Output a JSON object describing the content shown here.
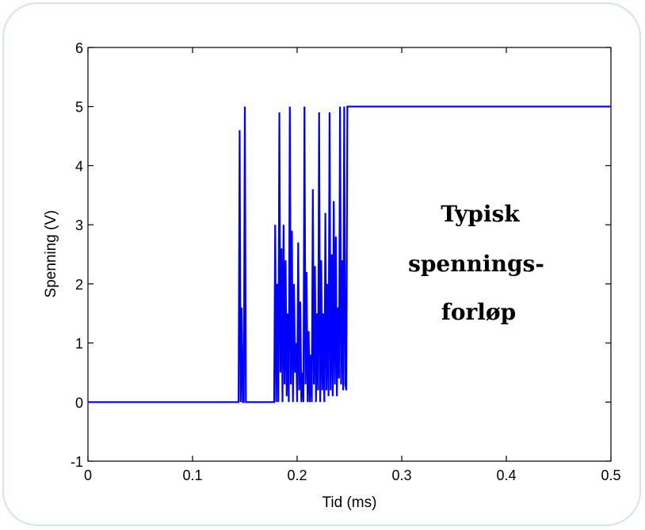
{
  "chart_data": {
    "type": "line",
    "xlabel": "Tid (ms)",
    "ylabel": "Spenning (V)",
    "xlim": [
      0,
      0.5
    ],
    "ylim": [
      -1,
      6
    ],
    "xticks": [
      0,
      0.1,
      0.2,
      0.3,
      0.4,
      0.5
    ],
    "xtick_labels": [
      "0",
      "0.1",
      "0.2",
      "0.3",
      "0.4",
      "0.5"
    ],
    "yticks": [
      -1,
      0,
      1,
      2,
      3,
      4,
      5,
      6
    ],
    "ytick_labels": [
      "-1",
      "0",
      "1",
      "2",
      "3",
      "4",
      "5",
      "6"
    ],
    "grid": false,
    "line_color": "#0000ff",
    "annotation": [
      "Typisk",
      "spennings-",
      "forløp"
    ],
    "series": [
      {
        "x": [
          0,
          0.144,
          0.145,
          0.146,
          0.147,
          0.148,
          0.149,
          0.15,
          0.151,
          0.152,
          0.153,
          0.175,
          0.178,
          0.179,
          0.18,
          0.181,
          0.182,
          0.183,
          0.184,
          0.185,
          0.186,
          0.187,
          0.188,
          0.189,
          0.19,
          0.191,
          0.192,
          0.193,
          0.194,
          0.195,
          0.196,
          0.197,
          0.198,
          0.199,
          0.2,
          0.201,
          0.202,
          0.203,
          0.204,
          0.205,
          0.206,
          0.207,
          0.208,
          0.209,
          0.21,
          0.211,
          0.212,
          0.213,
          0.214,
          0.215,
          0.216,
          0.217,
          0.218,
          0.219,
          0.22,
          0.221,
          0.222,
          0.223,
          0.224,
          0.225,
          0.226,
          0.227,
          0.228,
          0.229,
          0.23,
          0.231,
          0.232,
          0.233,
          0.234,
          0.235,
          0.236,
          0.237,
          0.238,
          0.239,
          0.24,
          0.241,
          0.242,
          0.243,
          0.244,
          0.245,
          0.246,
          0.247,
          0.248,
          0.249,
          0.25,
          0.251,
          0.252,
          0.253,
          0.5
        ],
        "y": [
          0,
          0,
          4.6,
          0,
          1.6,
          0,
          0,
          5.0,
          0,
          0,
          0,
          0,
          0,
          3.0,
          0,
          2.0,
          0,
          4.9,
          0.5,
          2.6,
          0,
          3.0,
          0.3,
          2.4,
          0.1,
          1.5,
          0,
          5.0,
          0.3,
          2.9,
          0,
          2.0,
          0.5,
          1.0,
          0,
          2.7,
          0.2,
          1.7,
          0,
          0.5,
          0,
          5.0,
          0.3,
          2.2,
          0,
          1.2,
          0,
          0.8,
          0,
          3.6,
          0.3,
          2.3,
          0,
          1.5,
          0.2,
          4.9,
          0,
          2.4,
          0.2,
          1.5,
          0,
          3.2,
          0.2,
          2.0,
          0.1,
          4.9,
          0.2,
          2.5,
          0.1,
          3.4,
          0.3,
          2.8,
          0.1,
          1.6,
          0.4,
          5.0,
          0.3,
          2.4,
          0.2,
          5.0,
          0.3,
          0.2,
          5.0,
          5.0,
          5.0,
          5.0,
          5.0,
          5.0,
          5.0
        ]
      }
    ]
  }
}
